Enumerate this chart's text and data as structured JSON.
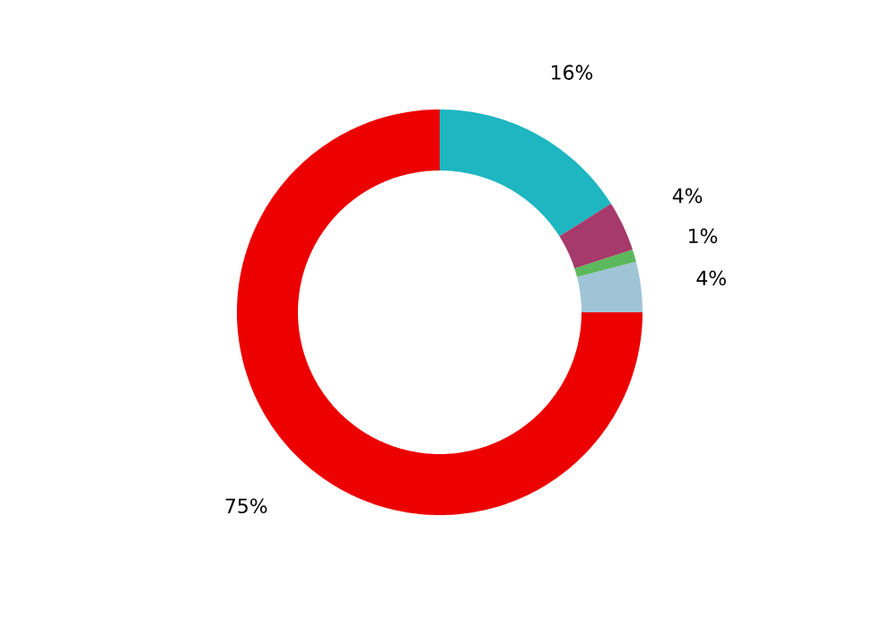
{
  "chart_data": {
    "type": "donut",
    "categories": [
      null,
      null,
      null,
      null,
      null
    ],
    "values": [
      16,
      4,
      1,
      4,
      75
    ],
    "value_labels": [
      "16%",
      "4%",
      "1%",
      "4%",
      "75%"
    ],
    "colors": [
      "#1db6c1",
      "#a53a6b",
      "#5cb85c",
      "#9ec4d6",
      "#ec0000"
    ]
  }
}
